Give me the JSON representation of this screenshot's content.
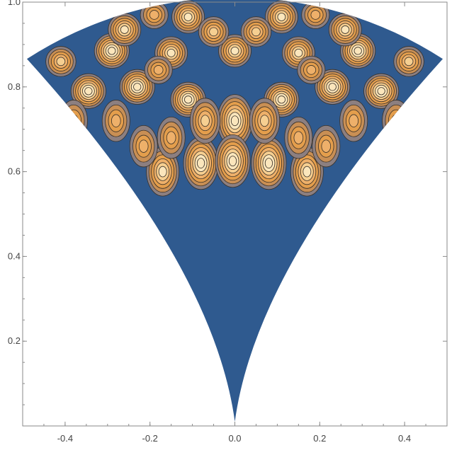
{
  "chart_data": {
    "type": "contour",
    "title": "",
    "xlabel": "",
    "ylabel": "",
    "xlim": [
      -0.5,
      0.5
    ],
    "ylim": [
      0.0,
      1.0
    ],
    "x_ticks": [
      -0.4,
      -0.2,
      0.0,
      0.2,
      0.4
    ],
    "x_tick_labels": [
      "-0.4",
      "-0.2",
      "0.0",
      "0.2",
      "0.4"
    ],
    "y_ticks": [
      0.2,
      0.4,
      0.6,
      0.8,
      1.0
    ],
    "y_tick_labels": [
      "0.2",
      "0.4",
      "0.6",
      "0.8",
      "1.0"
    ],
    "grid": false,
    "colors": {
      "background": "#ffffff",
      "region_fill": "#2f5a8f",
      "level_1": "#8c7f80",
      "level_2": "#c98f54",
      "level_3": "#e49e4c",
      "level_4": "#eeb06a",
      "level_5": "#f6cf91",
      "level_6": "#fbe6bc",
      "contour_line": "#3a3128",
      "frame": "#8a8a8a"
    },
    "region": {
      "description_shape": "curved wedge with cusp at bottom",
      "left_corner": [
        -0.49,
        0.866
      ],
      "right_corner": [
        0.49,
        0.866
      ],
      "top": [
        0.0,
        1.0
      ],
      "cusp": [
        0.0,
        0.0
      ]
    },
    "peaks": [
      {
        "x": 0.0,
        "y": 0.885,
        "level": 5
      },
      {
        "x": 0.0,
        "y": 0.72,
        "level": 6
      },
      {
        "x": -0.11,
        "y": 0.77,
        "level": 6
      },
      {
        "x": 0.11,
        "y": 0.77,
        "level": 6
      },
      {
        "x": -0.23,
        "y": 0.8,
        "level": 6
      },
      {
        "x": 0.23,
        "y": 0.8,
        "level": 6
      },
      {
        "x": -0.345,
        "y": 0.79,
        "level": 6
      },
      {
        "x": 0.345,
        "y": 0.79,
        "level": 6
      },
      {
        "x": -0.29,
        "y": 0.885,
        "level": 6
      },
      {
        "x": 0.29,
        "y": 0.885,
        "level": 6
      },
      {
        "x": -0.15,
        "y": 0.88,
        "level": 5
      },
      {
        "x": 0.15,
        "y": 0.88,
        "level": 5
      },
      {
        "x": -0.26,
        "y": 0.935,
        "level": 5
      },
      {
        "x": 0.26,
        "y": 0.935,
        "level": 5
      },
      {
        "x": -0.11,
        "y": 0.965,
        "level": 5
      },
      {
        "x": 0.11,
        "y": 0.965,
        "level": 5
      },
      {
        "x": -0.05,
        "y": 0.93,
        "level": 4
      },
      {
        "x": 0.05,
        "y": 0.93,
        "level": 4
      },
      {
        "x": -0.41,
        "y": 0.86,
        "level": 4
      },
      {
        "x": 0.41,
        "y": 0.86,
        "level": 4
      },
      {
        "x": -0.19,
        "y": 0.97,
        "level": 3
      },
      {
        "x": 0.19,
        "y": 0.97,
        "level": 3
      },
      {
        "x": -0.08,
        "y": 0.62,
        "level": 6
      },
      {
        "x": 0.08,
        "y": 0.62,
        "level": 6
      },
      {
        "x": -0.005,
        "y": 0.625,
        "level": 6
      },
      {
        "x": -0.17,
        "y": 0.6,
        "level": 5
      },
      {
        "x": 0.17,
        "y": 0.6,
        "level": 5
      },
      {
        "x": -0.07,
        "y": 0.72,
        "level": 4
      },
      {
        "x": 0.07,
        "y": 0.72,
        "level": 4
      },
      {
        "x": -0.15,
        "y": 0.68,
        "level": 3
      },
      {
        "x": 0.15,
        "y": 0.68,
        "level": 3
      },
      {
        "x": -0.28,
        "y": 0.72,
        "level": 3
      },
      {
        "x": 0.28,
        "y": 0.72,
        "level": 3
      },
      {
        "x": -0.38,
        "y": 0.72,
        "level": 3
      },
      {
        "x": 0.38,
        "y": 0.72,
        "level": 3
      },
      {
        "x": -0.215,
        "y": 0.66,
        "level": 3
      },
      {
        "x": 0.215,
        "y": 0.66,
        "level": 3
      },
      {
        "x": -0.18,
        "y": 0.84,
        "level": 3
      },
      {
        "x": 0.18,
        "y": 0.84,
        "level": 3
      }
    ]
  }
}
